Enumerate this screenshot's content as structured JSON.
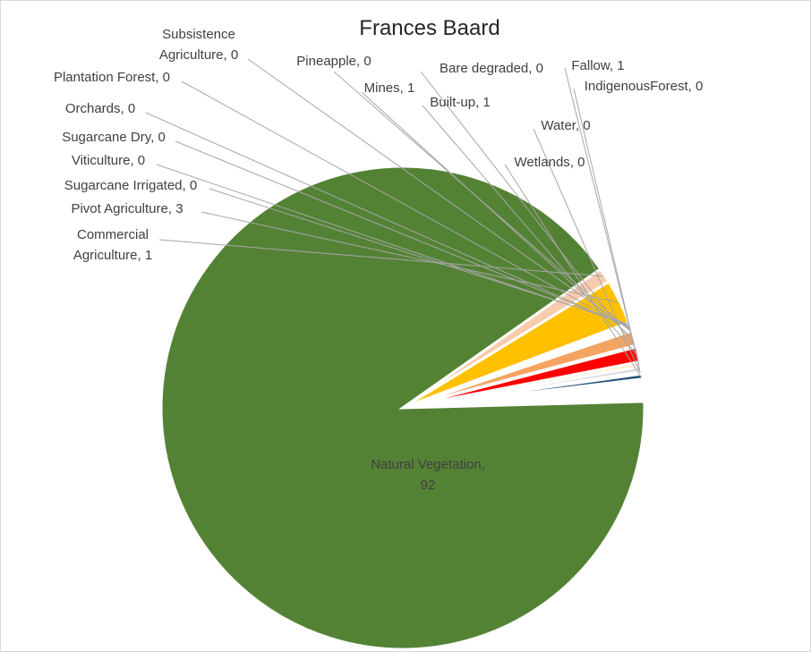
{
  "chart_data": {
    "type": "pie",
    "title": "Frances Baard",
    "slices": [
      {
        "name": "Natural Vegetation",
        "value": 92,
        "label_text": "Natural Vegetation, 92",
        "color": "#548235"
      },
      {
        "name": "Commercial Agriculture",
        "value": 1,
        "label_text": "Commercial Agriculture, 1",
        "color": "#F8CBAD"
      },
      {
        "name": "Pivot Agriculture",
        "value": 3,
        "label_text": "Pivot  Agriculture, 3",
        "color": "#FFC000"
      },
      {
        "name": "Sugarcane Irrigated",
        "value": 0,
        "label_text": "Sugarcane Irrigated, 0",
        "color": "#A9D18E"
      },
      {
        "name": "Viticulture",
        "value": 0,
        "label_text": "Viticulture, 0",
        "color": "#7030A0"
      },
      {
        "name": "Sugarcane Dry",
        "value": 0,
        "label_text": "Sugarcane Dry, 0",
        "color": "#C9C9C9"
      },
      {
        "name": "Orchards",
        "value": 0,
        "label_text": "Orchards, 0",
        "color": "#70AD47"
      },
      {
        "name": "Plantation Forest",
        "value": 0,
        "label_text": "Plantation Forest, 0",
        "color": "#375623"
      },
      {
        "name": "Subsistence Agriculture",
        "value": 0,
        "label_text": "Subsistence Agriculture, 0",
        "color": "#203864"
      },
      {
        "name": "Pineapple",
        "value": 0,
        "label_text": "Pineapple, 0",
        "color": "#FFD966"
      },
      {
        "name": "Mines",
        "value": 1,
        "label_text": "Mines, 1",
        "color": "#F4A460"
      },
      {
        "name": "Bare degraded",
        "value": 0,
        "label_text": "Bare degraded, 0",
        "color": "#FFE699"
      },
      {
        "name": "Built-up",
        "value": 1,
        "label_text": "Built-up, 1",
        "color": "#FF0000"
      },
      {
        "name": "Fallow",
        "value": 1,
        "label_text": "Fallow, 1",
        "color": "#FFF2CC"
      },
      {
        "name": "IndigenousForest",
        "value": 0,
        "label_text": "IndigenousForest, 0",
        "color": "#D9D9D9"
      },
      {
        "name": "Water",
        "value": 0,
        "label_text": "Water, 0",
        "color": "#DAE3F3"
      },
      {
        "name": "Wetlands",
        "value": 0,
        "label_text": "Wetlands, 0",
        "color": "#1F4E79"
      }
    ]
  }
}
